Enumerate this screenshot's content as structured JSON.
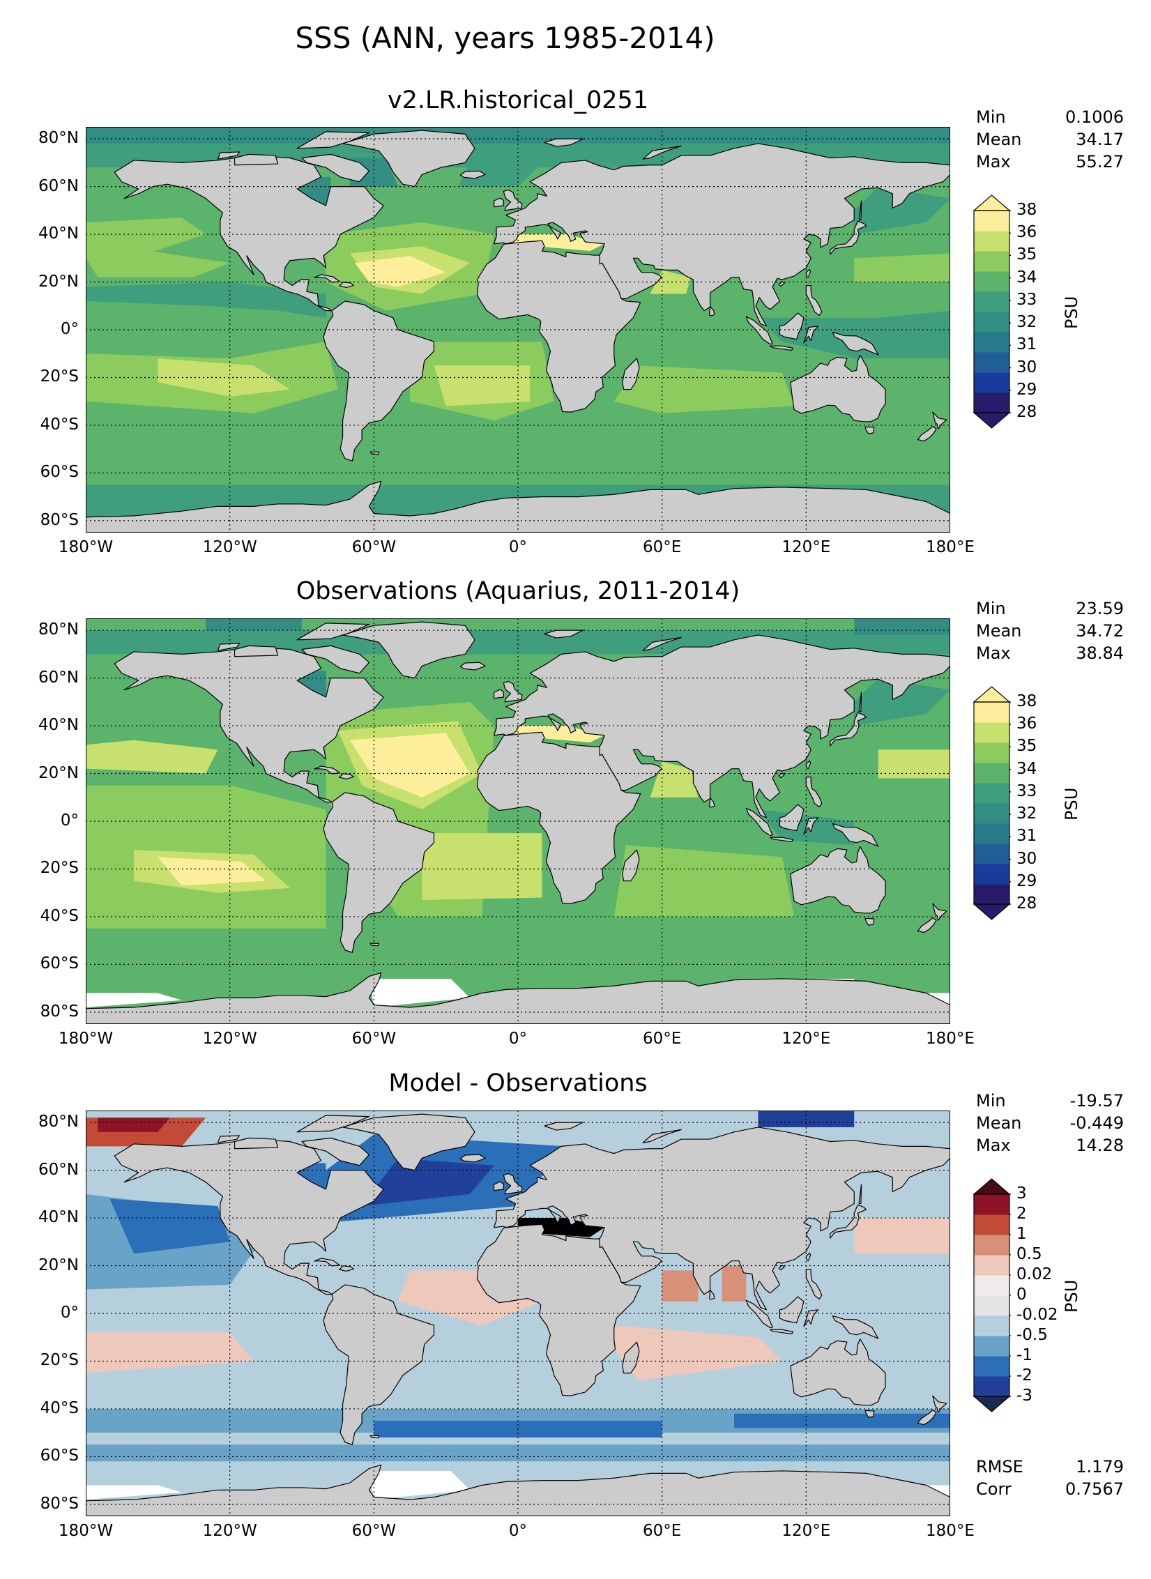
{
  "figure": {
    "title": "SSS (ANN, years 1985-2014)",
    "land_color": "#cccccc",
    "x_ticks": [
      "180°W",
      "120°W",
      "60°W",
      "0°",
      "60°E",
      "120°E",
      "180°E"
    ],
    "y_ticks": [
      "80°N",
      "60°N",
      "40°N",
      "20°N",
      "0°",
      "20°S",
      "40°S",
      "60°S",
      "80°S"
    ]
  },
  "panels": [
    {
      "title": "v2.LR.historical_0251",
      "stats": [
        {
          "label": "Min",
          "value": "0.1006"
        },
        {
          "label": "Mean",
          "value": "34.17"
        },
        {
          "label": "Max",
          "value": "55.27"
        }
      ],
      "colorbar": {
        "label": "PSU",
        "ticks": [
          "28",
          "29",
          "30",
          "31",
          "32",
          "33",
          "34",
          "35",
          "36",
          "38"
        ],
        "colors": [
          "#2a1a6a",
          "#183c9c",
          "#1f5f95",
          "#267a8a",
          "#328e84",
          "#3f9e7e",
          "#5bb36c",
          "#8ccb5e",
          "#c8e06e",
          "#fcee9a"
        ],
        "extend_low": "#2a1a6a",
        "extend_high": "#fcee9a"
      }
    },
    {
      "title": "Observations (Aquarius, 2011-2014)",
      "stats": [
        {
          "label": "Min",
          "value": "23.59"
        },
        {
          "label": "Mean",
          "value": "34.72"
        },
        {
          "label": "Max",
          "value": "38.84"
        }
      ],
      "colorbar": {
        "label": "PSU",
        "ticks": [
          "28",
          "29",
          "30",
          "31",
          "32",
          "33",
          "34",
          "35",
          "36",
          "38"
        ],
        "colors": [
          "#2a1a6a",
          "#183c9c",
          "#1f5f95",
          "#267a8a",
          "#328e84",
          "#3f9e7e",
          "#5bb36c",
          "#8ccb5e",
          "#c8e06e",
          "#fcee9a"
        ],
        "extend_low": "#2a1a6a",
        "extend_high": "#fcee9a"
      }
    },
    {
      "title": "Model - Observations",
      "stats": [
        {
          "label": "Min",
          "value": "-19.57"
        },
        {
          "label": "Mean",
          "value": "-0.449"
        },
        {
          "label": "Max",
          "value": "14.28"
        }
      ],
      "bottom_stats": [
        {
          "label": "RMSE",
          "value": "1.179"
        },
        {
          "label": "Corr",
          "value": "0.7567"
        }
      ],
      "colorbar": {
        "label": "PSU",
        "ticks": [
          "-3",
          "-2",
          "-1",
          "-0.5",
          "-0.02",
          "0",
          "0.02",
          "0.5",
          "1",
          "2",
          "3"
        ],
        "colors": [
          "#21409a",
          "#2a6fb7",
          "#6aa3c8",
          "#b6cfdd",
          "#e6e3e6",
          "#f0eaea",
          "#eec8bb",
          "#d89078",
          "#c24a36",
          "#8e1327"
        ],
        "extend_low": "#1b2a52",
        "extend_high": "#4a0c14"
      }
    }
  ]
}
